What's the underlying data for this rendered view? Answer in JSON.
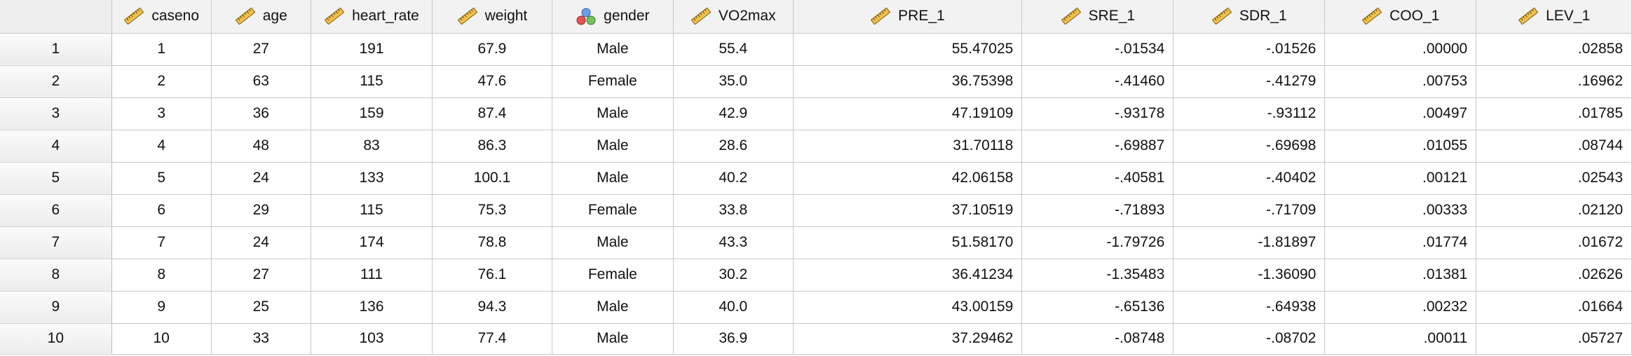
{
  "columns": [
    {
      "key": "caseno",
      "label": "caseno",
      "icon": "ruler-icon",
      "align": "c"
    },
    {
      "key": "age",
      "label": "age",
      "icon": "ruler-icon",
      "align": "c"
    },
    {
      "key": "heart_rate",
      "label": "heart_rate",
      "icon": "ruler-icon",
      "align": "c"
    },
    {
      "key": "weight",
      "label": "weight",
      "icon": "ruler-icon",
      "align": "c"
    },
    {
      "key": "gender",
      "label": "gender",
      "icon": "nominal-icon",
      "align": "c"
    },
    {
      "key": "VO2max",
      "label": "VO2max",
      "icon": "ruler-icon",
      "align": "c"
    },
    {
      "key": "PRE_1",
      "label": "PRE_1",
      "icon": "ruler-icon",
      "align": "r"
    },
    {
      "key": "SRE_1",
      "label": "SRE_1",
      "icon": "ruler-icon",
      "align": "r"
    },
    {
      "key": "SDR_1",
      "label": "SDR_1",
      "icon": "ruler-icon",
      "align": "r"
    },
    {
      "key": "COO_1",
      "label": "COO_1",
      "icon": "ruler-icon",
      "align": "r"
    },
    {
      "key": "LEV_1",
      "label": "LEV_1",
      "icon": "ruler-icon",
      "align": "r"
    }
  ],
  "rows": [
    {
      "num": "1",
      "cells": [
        "1",
        "27",
        "191",
        "67.9",
        "Male",
        "55.4",
        "55.47025",
        "-.01534",
        "-.01526",
        ".00000",
        ".02858"
      ]
    },
    {
      "num": "2",
      "cells": [
        "2",
        "63",
        "115",
        "47.6",
        "Female",
        "35.0",
        "36.75398",
        "-.41460",
        "-.41279",
        ".00753",
        ".16962"
      ]
    },
    {
      "num": "3",
      "cells": [
        "3",
        "36",
        "159",
        "87.4",
        "Male",
        "42.9",
        "47.19109",
        "-.93178",
        "-.93112",
        ".00497",
        ".01785"
      ]
    },
    {
      "num": "4",
      "cells": [
        "4",
        "48",
        "83",
        "86.3",
        "Male",
        "28.6",
        "31.70118",
        "-.69887",
        "-.69698",
        ".01055",
        ".08744"
      ]
    },
    {
      "num": "5",
      "cells": [
        "5",
        "24",
        "133",
        "100.1",
        "Male",
        "40.2",
        "42.06158",
        "-.40581",
        "-.40402",
        ".00121",
        ".02543"
      ]
    },
    {
      "num": "6",
      "cells": [
        "6",
        "29",
        "115",
        "75.3",
        "Female",
        "33.8",
        "37.10519",
        "-.71893",
        "-.71709",
        ".00333",
        ".02120"
      ]
    },
    {
      "num": "7",
      "cells": [
        "7",
        "24",
        "174",
        "78.8",
        "Male",
        "43.3",
        "51.58170",
        "-1.79726",
        "-1.81897",
        ".01774",
        ".01672"
      ]
    },
    {
      "num": "8",
      "cells": [
        "8",
        "27",
        "111",
        "76.1",
        "Female",
        "30.2",
        "36.41234",
        "-1.35483",
        "-1.36090",
        ".01381",
        ".02626"
      ]
    },
    {
      "num": "9",
      "cells": [
        "9",
        "25",
        "136",
        "94.3",
        "Male",
        "40.0",
        "43.00159",
        "-.65136",
        "-.64938",
        ".00232",
        ".01664"
      ]
    },
    {
      "num": "10",
      "cells": [
        "10",
        "33",
        "103",
        "77.4",
        "Male",
        "36.9",
        "37.29462",
        "-.08748",
        "-.08702",
        ".00011",
        ".05727"
      ]
    }
  ]
}
